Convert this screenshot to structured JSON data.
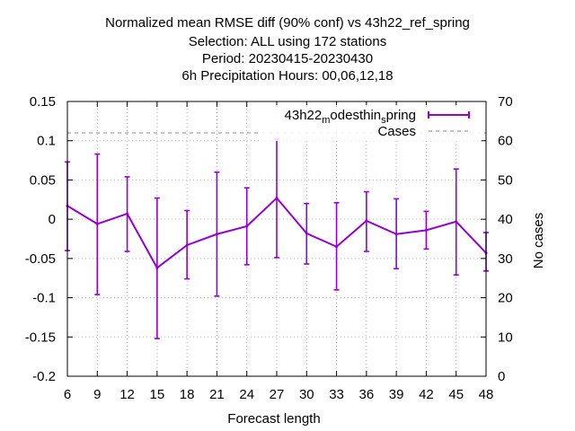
{
  "chart_data": {
    "type": "line",
    "title_lines": [
      "Normalized mean RMSE diff (90% conf) vs 43h22_ref_spring",
      "Selection: ALL using   172 stations",
      "Period: 20230415-20230430",
      "6h Precipitation   Hours:  00,06,12,18"
    ],
    "xlabel": "Forecast length",
    "ylabel": "",
    "y2label": "No cases",
    "x": [
      6,
      9,
      12,
      15,
      18,
      21,
      24,
      27,
      30,
      33,
      36,
      39,
      42,
      45,
      48
    ],
    "xlim": [
      6,
      48
    ],
    "ylim": [
      -0.2,
      0.15
    ],
    "y2lim": [
      0,
      70
    ],
    "x_ticks": [
      "6",
      "9",
      "12",
      "15",
      "18",
      "21",
      "24",
      "27",
      "30",
      "33",
      "36",
      "39",
      "42",
      "45",
      "48"
    ],
    "y_ticks": [
      "0.15",
      "0.1",
      "0.05",
      "0",
      "-0.05",
      "-0.1",
      "-0.15",
      "-0.2"
    ],
    "y2_ticks": [
      "70",
      "60",
      "50",
      "40",
      "30",
      "20",
      "10",
      "0"
    ],
    "grid": true,
    "legend_position": "top-right",
    "series": [
      {
        "name": "43h22_modesthin_spring",
        "color": "#9400d3",
        "style": "line-with-errorbars",
        "axis": "y1",
        "values": [
          0.017,
          -0.006,
          0.007,
          -0.062,
          -0.033,
          -0.019,
          -0.009,
          0.027,
          -0.018,
          -0.035,
          -0.002,
          -0.019,
          -0.014,
          -0.003,
          -0.043
        ],
        "lower": [
          -0.04,
          -0.096,
          -0.041,
          -0.152,
          -0.076,
          -0.098,
          -0.058,
          -0.049,
          -0.057,
          -0.09,
          -0.041,
          -0.063,
          -0.038,
          -0.071,
          -0.066
        ],
        "upper": [
          0.073,
          0.083,
          0.054,
          0.027,
          0.011,
          0.06,
          0.04,
          0.102,
          0.02,
          0.021,
          0.035,
          0.026,
          0.01,
          0.064,
          -0.017
        ]
      },
      {
        "name": "Cases",
        "color": "#a0a0a0",
        "style": "dashed",
        "axis": "y2",
        "values": [
          62,
          62,
          62,
          62,
          62,
          62,
          62,
          62,
          62,
          62,
          62,
          62,
          62,
          62,
          62
        ]
      }
    ]
  }
}
